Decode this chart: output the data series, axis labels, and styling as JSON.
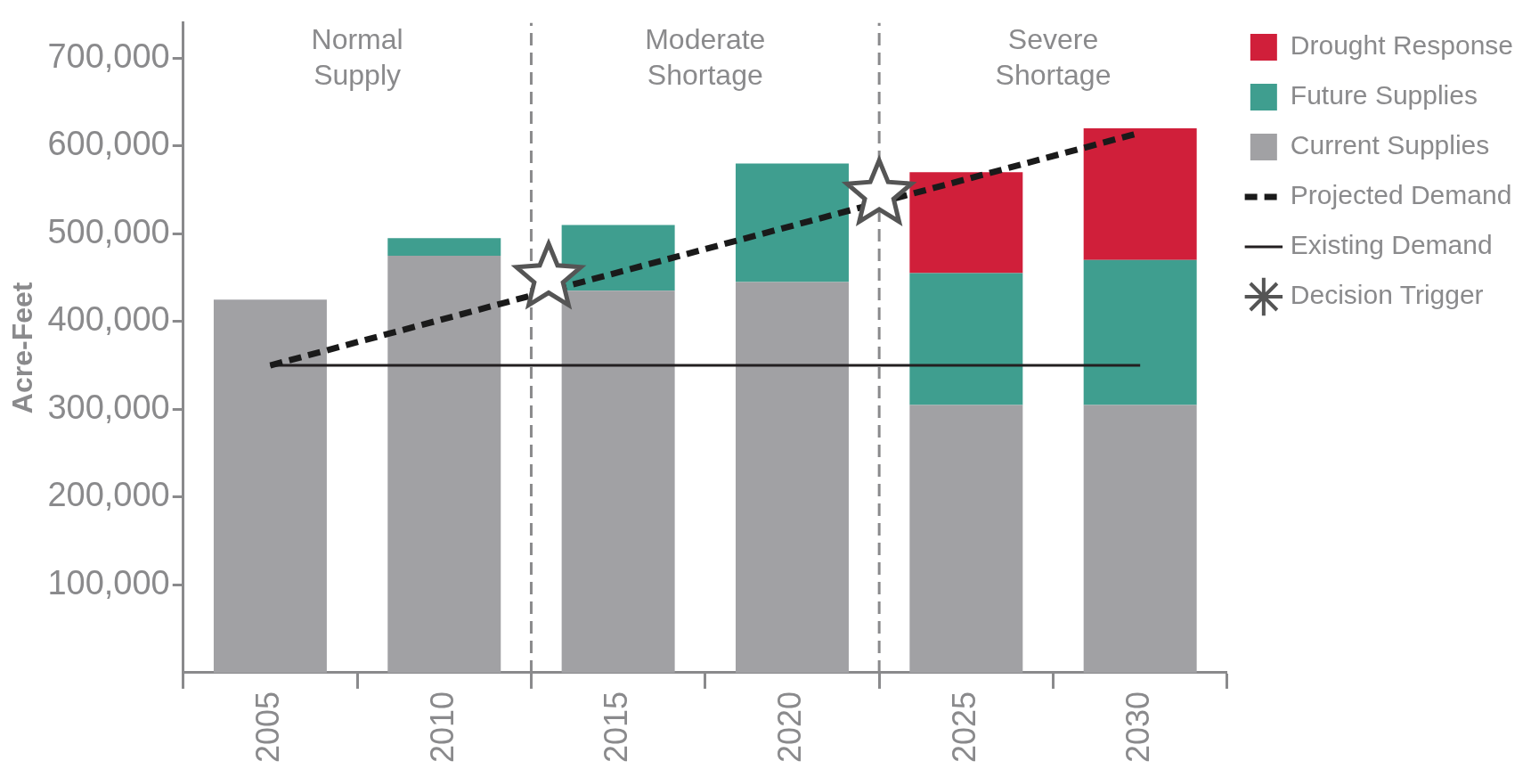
{
  "chart_data": {
    "type": "bar",
    "ylabel": "Acre-Feet",
    "stacked": true,
    "x": [
      2005,
      2010,
      2015,
      2020,
      2025,
      2030
    ],
    "xlim": [
      2002.5,
      2032.5
    ],
    "xticks": [
      2005,
      2010,
      2015,
      2020,
      2025,
      2030
    ],
    "ylim": [
      0,
      740000
    ],
    "yticks": [
      {
        "value": 100000,
        "label": "100,000"
      },
      {
        "value": 200000,
        "label": "200,000"
      },
      {
        "value": 300000,
        "label": "300,000"
      },
      {
        "value": 400000,
        "label": "400,000"
      },
      {
        "value": 500000,
        "label": "500,000"
      },
      {
        "value": 600000,
        "label": "600,000"
      },
      {
        "value": 700000,
        "label": "700,000"
      }
    ],
    "series": [
      {
        "name": "Current Supplies",
        "color": "#a1a1a4",
        "values": [
          425000,
          475000,
          435000,
          445000,
          305000,
          305000
        ]
      },
      {
        "name": "Future Supplies",
        "color": "#3f9e8f",
        "values": [
          null,
          20000,
          75000,
          135000,
          150000,
          165000
        ]
      },
      {
        "name": "Drought Response",
        "color": "#d01f3a",
        "values": [
          null,
          null,
          null,
          null,
          115000,
          150000
        ]
      },
      {
        "name": "Projected Demand",
        "type": "line",
        "color": "#1a1a1a",
        "line_style": "dashed",
        "marker": "none",
        "x": [
          2005,
          2030
        ],
        "values": [
          350000,
          615000
        ]
      },
      {
        "name": "Existing Demand",
        "type": "line",
        "color": "#231f20",
        "line_style": "solid",
        "marker": "none",
        "x": [
          2005,
          2030
        ],
        "values": [
          350000,
          350000
        ]
      },
      {
        "name": "Decision Trigger",
        "type": "scatter",
        "color": "#555555",
        "marker": "star",
        "x": [
          2013,
          2022.5
        ],
        "values": [
          450000,
          545000
        ]
      }
    ],
    "ref_lines": [
      {
        "axis": "x",
        "value": 2012.5,
        "color": "#8a8a8c",
        "line_style": "dashed"
      },
      {
        "axis": "x",
        "value": 2022.5,
        "color": "#8a8a8c",
        "line_style": "dashed"
      }
    ],
    "annotations": [
      "Normal Supply",
      "Moderate Shortage",
      "Severe Shortage"
    ],
    "grid": false,
    "legend": "right"
  }
}
